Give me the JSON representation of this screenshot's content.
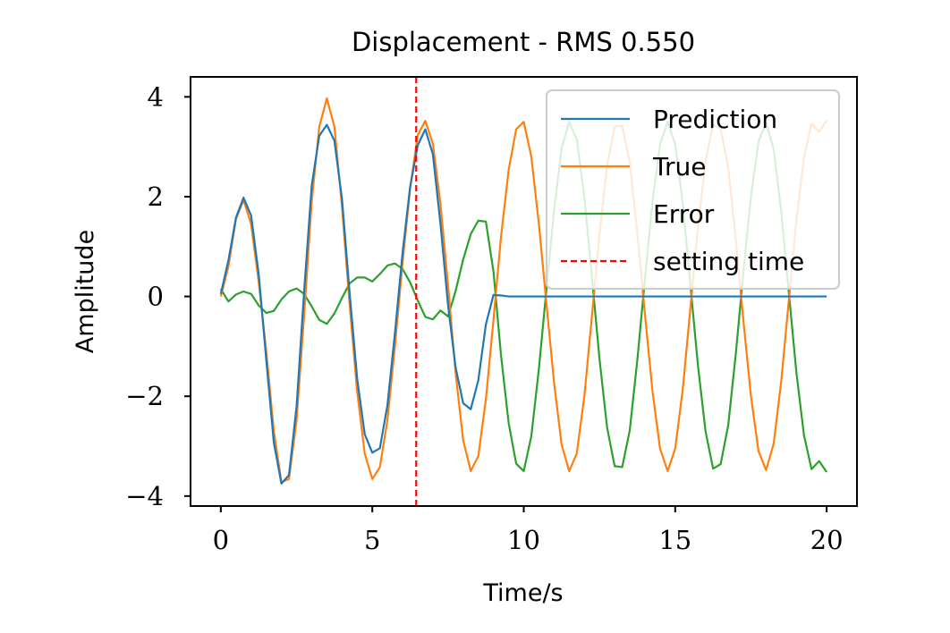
{
  "chart_data": {
    "type": "line",
    "title": "Displacement - RMS 0.550",
    "xlabel": "Time/s",
    "ylabel": "Amplitude",
    "xlim": [
      -1,
      21
    ],
    "ylim": [
      -4.2,
      4.4
    ],
    "x_ticks": [
      0,
      5,
      10,
      15,
      20
    ],
    "y_ticks": [
      -4,
      -2,
      0,
      2,
      4
    ],
    "x_tick_labels": [
      "0",
      "5",
      "10",
      "15",
      "20"
    ],
    "y_tick_labels": [
      "−4",
      "−2",
      "0",
      "2",
      "4"
    ],
    "grid": false,
    "legend_position": "top-right",
    "x": [
      0,
      0.25,
      0.5,
      0.75,
      1.0,
      1.25,
      1.5,
      1.75,
      2.0,
      2.25,
      2.5,
      2.75,
      3.0,
      3.25,
      3.5,
      3.75,
      4.0,
      4.25,
      4.5,
      4.75,
      5.0,
      5.25,
      5.5,
      5.75,
      6.0,
      6.25,
      6.5,
      6.75,
      7.0,
      7.25,
      7.5,
      7.75,
      8.0,
      8.25,
      8.5,
      8.75,
      9.0,
      9.25,
      9.5,
      9.75,
      10.0,
      10.25,
      10.5,
      10.75,
      11.0,
      11.25,
      11.5,
      11.75,
      12.0,
      12.25,
      12.5,
      12.75,
      13.0,
      13.25,
      13.5,
      13.75,
      14.0,
      14.25,
      14.5,
      14.75,
      15.0,
      15.25,
      15.5,
      15.75,
      16.0,
      16.25,
      16.5,
      16.75,
      17.0,
      17.25,
      17.5,
      17.75,
      18.0,
      18.25,
      18.5,
      18.75,
      19.0,
      19.25,
      19.5,
      19.75,
      20.0
    ],
    "series": [
      {
        "name": "Prediction",
        "color": "#1f77b4",
        "values": [
          0.05,
          0.72,
          1.58,
          1.98,
          1.62,
          0.45,
          -1.27,
          -2.93,
          -3.75,
          -3.58,
          -2.21,
          0.1,
          2.22,
          3.22,
          3.44,
          3.12,
          1.95,
          0.08,
          -1.64,
          -2.76,
          -3.13,
          -3.04,
          -2.18,
          -0.72,
          0.88,
          2.2,
          3.03,
          3.35,
          2.85,
          1.46,
          -0.17,
          -1.42,
          -2.14,
          -2.26,
          -1.68,
          -0.56,
          0.03,
          0.02,
          0.0,
          0.0,
          0.0,
          0.0,
          0.0,
          0.0,
          0.0,
          0.0,
          0.0,
          0.0,
          0.0,
          0.0,
          0.0,
          0.0,
          0.0,
          0.0,
          0.0,
          0.0,
          0.0,
          0.0,
          0.0,
          0.0,
          0.0,
          0.0,
          0.0,
          0.0,
          0.0,
          0.0,
          0.0,
          0.0,
          0.0,
          0.0,
          0.0,
          0.0,
          0.0,
          0.0,
          0.0,
          0.0,
          0.0,
          0.0,
          0.0,
          0.0,
          0.0
        ]
      },
      {
        "name": "True",
        "color": "#ff7f0e",
        "values": [
          0.0,
          0.6,
          1.55,
          1.93,
          1.45,
          0.3,
          -1.1,
          -2.7,
          -3.72,
          -3.66,
          -2.48,
          -0.38,
          1.9,
          3.4,
          3.97,
          3.4,
          1.8,
          -0.15,
          -1.9,
          -3.15,
          -3.66,
          -3.42,
          -2.48,
          -0.98,
          0.68,
          2.17,
          3.23,
          3.52,
          3.06,
          1.86,
          0.23,
          -1.53,
          -2.88,
          -3.5,
          -3.2,
          -2.06,
          -0.47,
          1.2,
          2.53,
          3.35,
          3.5,
          2.8,
          1.45,
          -0.15,
          -1.72,
          -2.97,
          -3.5,
          -3.15,
          -2.0,
          -0.4,
          1.25,
          2.62,
          3.4,
          3.42,
          2.68,
          1.27,
          -0.35,
          -1.9,
          -3.05,
          -3.5,
          -3.05,
          -1.86,
          -0.24,
          1.38,
          2.7,
          3.45,
          3.36,
          2.58,
          1.15,
          -0.48,
          -2.0,
          -3.1,
          -3.48,
          -2.95,
          -1.7,
          -0.08,
          1.52,
          2.78,
          3.46,
          3.3,
          3.52
        ]
      },
      {
        "name": "Error",
        "color": "#2ca02c",
        "values": [
          0.15,
          -0.1,
          0.04,
          0.1,
          0.05,
          -0.18,
          -0.33,
          -0.29,
          -0.06,
          0.1,
          0.16,
          0.05,
          -0.2,
          -0.47,
          -0.55,
          -0.34,
          -0.03,
          0.26,
          0.38,
          0.38,
          0.3,
          0.45,
          0.62,
          0.66,
          0.55,
          0.28,
          -0.08,
          -0.41,
          -0.46,
          -0.28,
          -0.4,
          0.11,
          0.74,
          1.25,
          1.52,
          1.5,
          0.5,
          -1.18,
          -2.53,
          -3.35,
          -3.5,
          -2.8,
          -1.45,
          0.15,
          1.72,
          2.97,
          3.5,
          3.15,
          2.0,
          0.4,
          -1.25,
          -2.62,
          -3.4,
          -3.42,
          -2.68,
          -1.27,
          0.35,
          1.9,
          3.05,
          3.5,
          3.05,
          1.86,
          0.24,
          -1.38,
          -2.7,
          -3.45,
          -3.36,
          -2.58,
          -1.15,
          0.48,
          2.0,
          3.1,
          3.48,
          2.95,
          1.7,
          0.08,
          -1.52,
          -2.78,
          -3.46,
          -3.3,
          -3.52
        ]
      }
    ],
    "vline": {
      "name": "setting time",
      "x": 6.45,
      "color": "#ff0000",
      "style": "dashed"
    }
  }
}
